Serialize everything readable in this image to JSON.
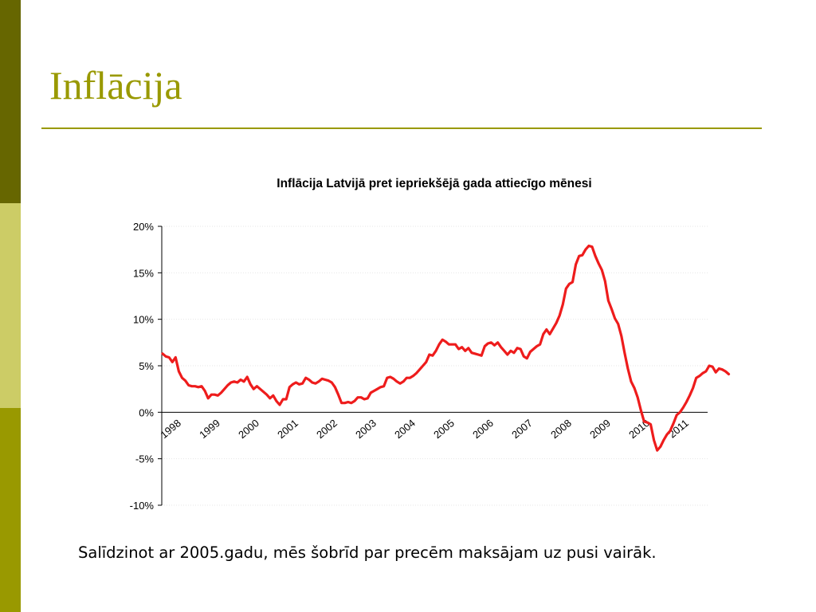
{
  "slide": {
    "title": "Inflācija",
    "caption": "Salīdzinot ar 2005.gadu, mēs šobrīd par precēm maksājam uz pusi vairāk."
  },
  "colors": {
    "stripe_top": "#666600",
    "stripe_middle": "#cccc66",
    "stripe_bottom": "#999900",
    "title": "#999900",
    "rule": "#999900",
    "series": "#ee1c1c",
    "axis": "#000000",
    "grid": "#e6e6e6"
  },
  "chart_data": {
    "type": "line",
    "title": "Inflācija Latvijā pret iepriekšējā gada attiecīgo mēnesi",
    "xlabel": "",
    "ylabel": "",
    "ylim": [
      -10,
      20
    ],
    "y_ticks": [
      -10,
      -5,
      0,
      5,
      10,
      15,
      20
    ],
    "y_tick_labels": [
      "-10%",
      "-5%",
      "0%",
      "5%",
      "10%",
      "15%",
      "20%"
    ],
    "x_tick_labels": [
      "1998",
      "1999",
      "2000",
      "2001",
      "2002",
      "2003",
      "2004",
      "2005",
      "2006",
      "2007",
      "2008",
      "2009",
      "2010",
      "2011"
    ],
    "grid": true,
    "legend": "none",
    "x_start": "1998-01",
    "x_frequency": "monthly",
    "series": [
      {
        "values": [
          6.3,
          6.0,
          5.9,
          5.4,
          5.9,
          4.4,
          3.7,
          3.4,
          2.9,
          2.8,
          2.8,
          2.7,
          2.8,
          2.3,
          1.5,
          1.9,
          1.9,
          1.8,
          2.1,
          2.5,
          2.9,
          3.2,
          3.3,
          3.2,
          3.5,
          3.3,
          3.8,
          3.0,
          2.5,
          2.8,
          2.5,
          2.2,
          1.9,
          1.5,
          1.8,
          1.2,
          0.8,
          1.4,
          1.4,
          2.7,
          3.0,
          3.2,
          3.0,
          3.1,
          3.7,
          3.5,
          3.2,
          3.1,
          3.3,
          3.6,
          3.5,
          3.4,
          3.2,
          2.7,
          1.9,
          1.0,
          1.0,
          1.1,
          1.0,
          1.2,
          1.6,
          1.6,
          1.4,
          1.5,
          2.1,
          2.3,
          2.5,
          2.7,
          2.8,
          3.7,
          3.8,
          3.6,
          3.3,
          3.1,
          3.3,
          3.7,
          3.7,
          3.9,
          4.2,
          4.6,
          5.0,
          5.4,
          6.2,
          6.1,
          6.6,
          7.3,
          7.8,
          7.6,
          7.3,
          7.3,
          7.3,
          6.8,
          7.0,
          6.6,
          6.9,
          6.4,
          6.3,
          6.2,
          6.1,
          7.1,
          7.4,
          7.5,
          7.2,
          7.5,
          7.0,
          6.6,
          6.2,
          6.6,
          6.4,
          6.9,
          6.8,
          6.0,
          5.8,
          6.5,
          6.8,
          7.1,
          7.3,
          8.4,
          8.9,
          8.4,
          9.0,
          9.6,
          10.4,
          11.6,
          13.3,
          13.8,
          14.0,
          15.9,
          16.8,
          16.9,
          17.5,
          17.9,
          17.8,
          16.8,
          16.0,
          15.3,
          14.1,
          12.0,
          11.1,
          10.1,
          9.5,
          8.2,
          6.4,
          4.7,
          3.3,
          2.6,
          1.6,
          0.2,
          -1.0,
          -1.1,
          -1.3,
          -3.0,
          -4.1,
          -3.7,
          -3.0,
          -2.4,
          -2.0,
          -1.2,
          -0.3,
          0.0,
          0.5,
          1.1,
          1.8,
          2.6,
          3.7,
          3.9,
          4.2,
          4.4,
          5.0,
          4.9,
          4.3,
          4.7,
          4.6,
          4.4,
          4.1
        ]
      }
    ]
  }
}
